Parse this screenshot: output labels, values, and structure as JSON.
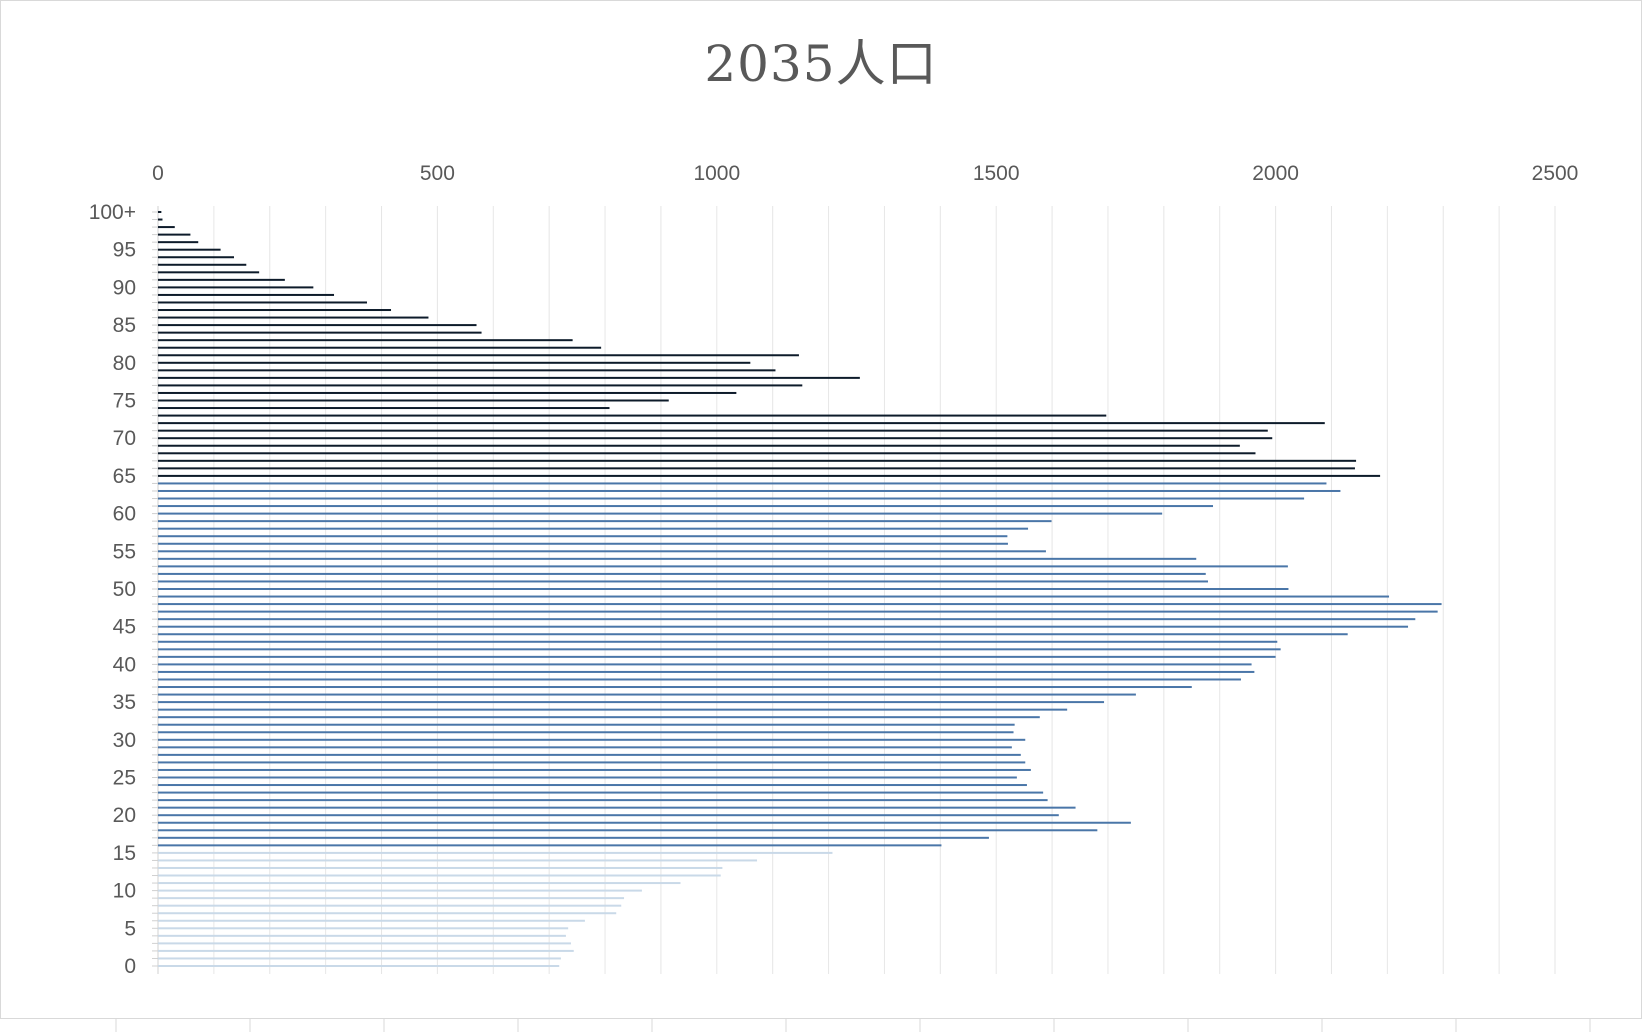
{
  "chart_data": {
    "type": "bar",
    "orientation": "horizontal",
    "title": "2035人口",
    "xlabel": "",
    "ylabel": "",
    "x_axis_position": "top",
    "xlim": [
      0,
      2500
    ],
    "x_ticks": [
      "0",
      "500",
      "1000",
      "1500",
      "2000",
      "2500"
    ],
    "y_tick_labels": [
      "0",
      "5",
      "10",
      "15",
      "20",
      "25",
      "30",
      "35",
      "40",
      "45",
      "50",
      "55",
      "60",
      "65",
      "70",
      "75",
      "80",
      "85",
      "90",
      "95",
      "100+"
    ],
    "grid": true,
    "legend": "none",
    "categories": [
      "0",
      "1",
      "2",
      "3",
      "4",
      "5",
      "6",
      "7",
      "8",
      "9",
      "10",
      "11",
      "12",
      "13",
      "14",
      "15",
      "16",
      "17",
      "18",
      "19",
      "20",
      "21",
      "22",
      "23",
      "24",
      "25",
      "26",
      "27",
      "28",
      "29",
      "30",
      "31",
      "32",
      "33",
      "34",
      "35",
      "36",
      "37",
      "38",
      "39",
      "40",
      "41",
      "42",
      "43",
      "44",
      "45",
      "46",
      "47",
      "48",
      "49",
      "50",
      "51",
      "52",
      "53",
      "54",
      "55",
      "56",
      "57",
      "58",
      "59",
      "60",
      "61",
      "62",
      "63",
      "64",
      "65",
      "66",
      "67",
      "68",
      "69",
      "70",
      "71",
      "72",
      "73",
      "74",
      "75",
      "76",
      "77",
      "78",
      "79",
      "80",
      "81",
      "82",
      "83",
      "84",
      "85",
      "86",
      "87",
      "88",
      "89",
      "90",
      "91",
      "92",
      "93",
      "94",
      "95",
      "96",
      "97",
      "98",
      "99",
      "100+"
    ],
    "values": [
      718,
      721,
      744,
      739,
      730,
      734,
      764,
      820,
      829,
      834,
      866,
      935,
      1007,
      1010,
      1072,
      1207,
      1402,
      1487,
      1681,
      1741,
      1612,
      1642,
      1592,
      1584,
      1555,
      1537,
      1562,
      1552,
      1544,
      1528,
      1552,
      1531,
      1533,
      1578,
      1627,
      1693,
      1750,
      1850,
      1938,
      1962,
      1957,
      2000,
      2009,
      2003,
      2129,
      2237,
      2250,
      2290,
      2297,
      2203,
      2023,
      1879,
      1875,
      2022,
      1858,
      1589,
      1521,
      1520,
      1557,
      1599,
      1797,
      1888,
      2051,
      2116,
      2091,
      2187,
      2142,
      2144,
      1964,
      1936,
      1994,
      1986,
      2088,
      1697,
      808,
      914,
      1035,
      1153,
      1256,
      1105,
      1060,
      1147,
      793,
      742,
      579,
      570,
      484,
      417,
      374,
      315,
      278,
      227,
      181,
      158,
      136,
      112,
      72,
      58,
      30,
      8,
      6
    ],
    "colors": {
      "ages_0_15": "#c9d9e8",
      "ages_16_64": "#4a76a8",
      "ages_65_plus": "#0d1b2a",
      "gridline": "#e6e6e6",
      "tick_text": "#595959",
      "title_text": "#595959"
    }
  }
}
